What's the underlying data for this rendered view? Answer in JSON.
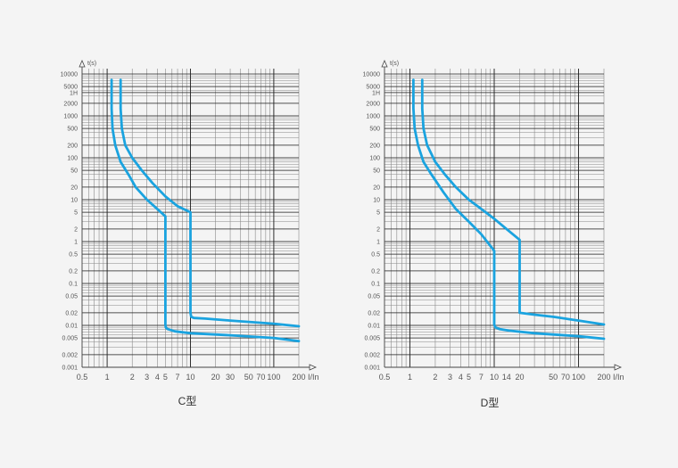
{
  "chart_data": [
    {
      "type": "line",
      "title": "C型",
      "xlabel": "I/In",
      "ylabel": "t(s)",
      "x_scale": "log",
      "y_scale": "log",
      "xlim": [
        0.5,
        200
      ],
      "ylim": [
        0.001,
        10000
      ],
      "x_tick_labels": [
        "0.5",
        "1",
        "2",
        "3",
        "4",
        "5",
        "7",
        "10",
        "20",
        "30",
        "50",
        "70",
        "100",
        "200"
      ],
      "y_tick_labels": [
        "0.001",
        "0.002",
        "0.005",
        "0.01",
        "0.02",
        "0.05",
        "0.1",
        "0.2",
        "0.5",
        "1",
        "2",
        "5",
        "10",
        "20",
        "50",
        "100",
        "200",
        "500",
        "1000",
        "2000",
        "1H",
        "5000",
        "10000"
      ],
      "grid": true,
      "color": "#1aa3df",
      "series": [
        {
          "x": [
            1.13,
            1.13,
            1.16,
            1.25,
            1.45,
            1.8,
            2.2,
            3.0,
            4.0,
            5.0,
            5.0,
            5.05,
            5.3,
            6.5,
            10,
            30,
            100,
            200
          ],
          "y": [
            7200,
            1500,
            500,
            200,
            80,
            40,
            20,
            10,
            6,
            4,
            0.0105,
            0.009,
            0.0082,
            0.0072,
            0.0065,
            0.0058,
            0.005,
            0.0042
          ]
        },
        {
          "x": [
            1.45,
            1.45,
            1.5,
            1.65,
            2.0,
            2.6,
            3.5,
            5.0,
            7.0,
            10,
            10,
            10.2,
            11,
            15,
            30,
            100,
            200
          ],
          "y": [
            7200,
            1500,
            500,
            200,
            100,
            50,
            25,
            12,
            7,
            5,
            0.02,
            0.016,
            0.015,
            0.0145,
            0.013,
            0.011,
            0.0095
          ]
        }
      ]
    },
    {
      "type": "line",
      "title": "D型",
      "xlabel": "I/In",
      "ylabel": "t(s)",
      "x_scale": "log",
      "y_scale": "log",
      "xlim": [
        0.5,
        200
      ],
      "ylim": [
        0.001,
        10000
      ],
      "x_tick_labels": [
        "0.5",
        "1",
        "2",
        "3",
        "4",
        "5",
        "7",
        "10",
        "14",
        "20",
        "50",
        "70",
        "100",
        "200"
      ],
      "y_tick_labels": [
        "0.001",
        "0.002",
        "0.005",
        "0.01",
        "0.02",
        "0.05",
        "0.1",
        "0.2",
        "0.5",
        "1",
        "2",
        "5",
        "10",
        "20",
        "50",
        "100",
        "200",
        "500",
        "1000",
        "2000",
        "1H",
        "5000",
        "10000"
      ],
      "grid": true,
      "color": "#1aa3df",
      "series": [
        {
          "x": [
            1.1,
            1.1,
            1.14,
            1.25,
            1.45,
            1.8,
            2.5,
            3.5,
            5.0,
            7.0,
            10,
            10,
            10.3,
            11.5,
            15,
            30,
            100,
            200
          ],
          "y": [
            7200,
            1500,
            500,
            200,
            80,
            40,
            15,
            6,
            3,
            1.5,
            0.6,
            0.0105,
            0.009,
            0.0082,
            0.0075,
            0.0065,
            0.0055,
            0.0048
          ],
          "name": ""
        },
        {
          "x": [
            1.4,
            1.4,
            1.45,
            1.6,
            2.0,
            2.6,
            3.5,
            5.0,
            7.0,
            10,
            14,
            20,
            20,
            30,
            50,
            100,
            200
          ],
          "y": [
            7200,
            1500,
            500,
            200,
            80,
            40,
            20,
            10,
            6,
            3.5,
            2,
            1.1,
            0.02,
            0.018,
            0.016,
            0.013,
            0.0105
          ]
        }
      ]
    }
  ]
}
